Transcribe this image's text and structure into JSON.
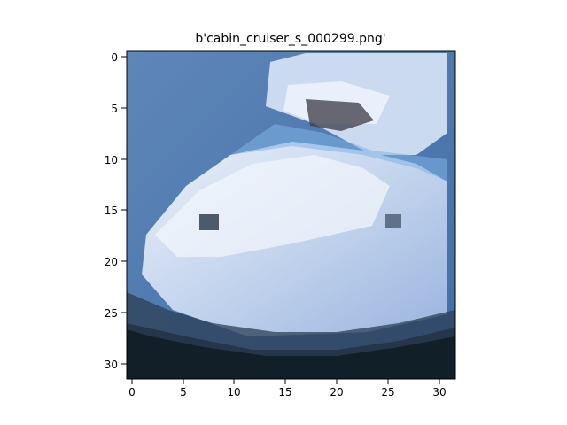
{
  "figure": {
    "title": "b'cabin_cruiser_s_000299.png'",
    "background": "#ffffff"
  },
  "image": {
    "description_colors": {
      "sky_water_blue": "#4f79ad",
      "hull_light": "#b9cdea",
      "hull_white": "#eef3fb",
      "cabin_dark": "#3b3a45",
      "shadow_dark": "#0f1a22"
    }
  },
  "axes": {
    "x_ticks": [
      "0",
      "5",
      "10",
      "15",
      "20",
      "25",
      "30"
    ],
    "y_ticks": [
      "0",
      "5",
      "10",
      "15",
      "20",
      "25",
      "30"
    ],
    "x_range": [
      -0.5,
      31.5
    ],
    "y_range": [
      -0.5,
      31.5
    ]
  }
}
